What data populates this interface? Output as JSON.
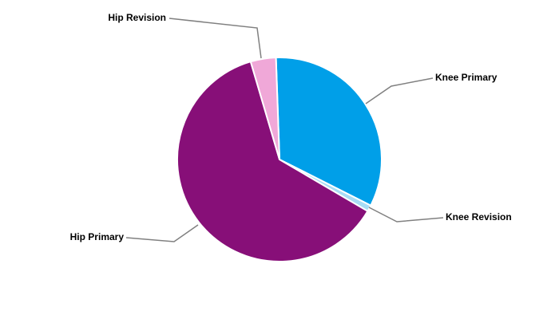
{
  "chart_data": {
    "type": "pie",
    "categories": [
      "Knee Primary",
      "Knee Revision",
      "Hip Primary",
      "Hip Revision"
    ],
    "values": [
      33,
      1,
      62,
      4
    ],
    "colors": [
      "#009fe8",
      "#a8dcf5",
      "#870f78",
      "#f0a8d8"
    ]
  }
}
